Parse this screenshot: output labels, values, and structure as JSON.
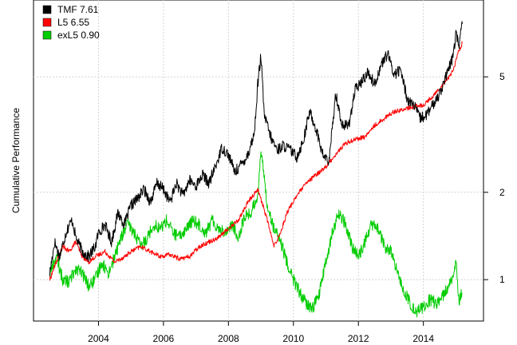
{
  "chart_data": {
    "type": "line",
    "title": "",
    "xlabel": "",
    "ylabel": "Cumulative Performance",
    "y_scale": "log",
    "xlim": [
      2002.0,
      2015.85
    ],
    "ylim": [
      0.72,
      9.2
    ],
    "x_ticks": [
      2004,
      2006,
      2008,
      2010,
      2012,
      2014
    ],
    "x_tick_labels": [
      "2004",
      "2006",
      "2008",
      "2010",
      "2012",
      "2014"
    ],
    "y_ticks": [
      1,
      2,
      5
    ],
    "y_tick_labels": [
      "1",
      "2",
      "5"
    ],
    "grid": true,
    "legend_position": "top-left",
    "series": [
      {
        "name": "TMF 7.61",
        "color": "#000000",
        "x": [
          2002.5,
          2002.65,
          2002.8,
          2003.0,
          2003.1,
          2003.2,
          2003.3,
          2003.5,
          2003.7,
          2003.9,
          2004.0,
          2004.2,
          2004.4,
          2004.6,
          2004.8,
          2005.0,
          2005.2,
          2005.4,
          2005.6,
          2005.8,
          2006.0,
          2006.2,
          2006.4,
          2006.6,
          2006.8,
          2007.0,
          2007.2,
          2007.4,
          2007.6,
          2007.8,
          2008.0,
          2008.2,
          2008.4,
          2008.6,
          2008.8,
          2008.9,
          2009.0,
          2009.1,
          2009.3,
          2009.5,
          2009.7,
          2009.9,
          2010.1,
          2010.3,
          2010.5,
          2010.7,
          2010.9,
          2011.1,
          2011.3,
          2011.5,
          2011.7,
          2011.9,
          2012.1,
          2012.3,
          2012.5,
          2012.7,
          2012.9,
          2013.1,
          2013.3,
          2013.5,
          2013.7,
          2013.9,
          2014.1,
          2014.3,
          2014.5,
          2014.7,
          2014.9,
          2015.0,
          2015.1,
          2015.2
        ],
        "values": [
          1.05,
          1.35,
          1.2,
          1.45,
          1.55,
          1.6,
          1.4,
          1.25,
          1.2,
          1.3,
          1.45,
          1.55,
          1.35,
          1.7,
          1.55,
          1.8,
          1.9,
          2.05,
          1.85,
          2.15,
          2.05,
          1.85,
          2.15,
          1.95,
          2.2,
          2.1,
          2.3,
          2.15,
          2.45,
          2.85,
          2.7,
          2.35,
          2.5,
          2.7,
          3.2,
          4.7,
          5.9,
          3.7,
          3.1,
          2.8,
          2.9,
          2.8,
          2.65,
          3.0,
          3.8,
          3.3,
          2.7,
          2.55,
          4.4,
          3.4,
          3.4,
          4.5,
          4.8,
          5.2,
          4.7,
          5.5,
          6.0,
          5.1,
          5.3,
          4.2,
          4.0,
          3.6,
          3.7,
          4.0,
          4.4,
          5.0,
          5.8,
          7.0,
          6.5,
          7.61
        ]
      },
      {
        "name": "L5 6.55",
        "color": "#ff0000",
        "x": [
          2002.5,
          2002.7,
          2002.9,
          2003.1,
          2003.3,
          2003.5,
          2003.7,
          2003.9,
          2004.2,
          2004.5,
          2004.8,
          2005.0,
          2005.3,
          2005.6,
          2005.9,
          2006.2,
          2006.5,
          2006.8,
          2007.1,
          2007.4,
          2007.7,
          2008.0,
          2008.3,
          2008.6,
          2008.9,
          2009.0,
          2009.2,
          2009.4,
          2009.6,
          2009.8,
          2010.1,
          2010.4,
          2010.7,
          2011.0,
          2011.3,
          2011.6,
          2011.9,
          2012.2,
          2012.5,
          2012.8,
          2013.1,
          2013.4,
          2013.7,
          2014.0,
          2014.3,
          2014.6,
          2014.9,
          2015.1,
          2015.2
        ],
        "values": [
          1.0,
          1.15,
          1.3,
          1.25,
          1.35,
          1.2,
          1.15,
          1.2,
          1.25,
          1.15,
          1.2,
          1.25,
          1.3,
          1.25,
          1.2,
          1.22,
          1.18,
          1.2,
          1.3,
          1.35,
          1.4,
          1.5,
          1.6,
          1.85,
          2.05,
          1.9,
          1.6,
          1.3,
          1.45,
          1.7,
          1.95,
          2.15,
          2.3,
          2.45,
          2.7,
          2.95,
          3.05,
          3.1,
          3.4,
          3.6,
          3.8,
          3.85,
          3.95,
          4.0,
          4.3,
          4.7,
          5.2,
          6.2,
          6.55
        ]
      },
      {
        "name": "exL5 0.90",
        "color": "#00cc00",
        "x": [
          2002.5,
          2002.7,
          2002.9,
          2003.1,
          2003.3,
          2003.5,
          2003.7,
          2003.9,
          2004.1,
          2004.3,
          2004.5,
          2004.7,
          2004.9,
          2005.1,
          2005.3,
          2005.5,
          2005.7,
          2005.9,
          2006.1,
          2006.3,
          2006.5,
          2006.7,
          2006.9,
          2007.1,
          2007.3,
          2007.5,
          2007.7,
          2007.9,
          2008.1,
          2008.3,
          2008.5,
          2008.7,
          2008.9,
          2009.0,
          2009.2,
          2009.4,
          2009.6,
          2009.8,
          2010.0,
          2010.2,
          2010.4,
          2010.6,
          2010.8,
          2011.0,
          2011.2,
          2011.4,
          2011.6,
          2011.8,
          2012.0,
          2012.2,
          2012.4,
          2012.6,
          2012.8,
          2013.0,
          2013.2,
          2013.4,
          2013.6,
          2013.8,
          2014.0,
          2014.2,
          2014.4,
          2014.6,
          2014.8,
          2015.0,
          2015.1,
          2015.2
        ],
        "values": [
          1.05,
          1.2,
          1.0,
          0.98,
          1.1,
          1.05,
          0.95,
          1.0,
          1.15,
          1.05,
          1.2,
          1.4,
          1.55,
          1.45,
          1.3,
          1.4,
          1.55,
          1.5,
          1.6,
          1.45,
          1.4,
          1.5,
          1.6,
          1.55,
          1.45,
          1.6,
          1.5,
          1.45,
          1.55,
          1.4,
          1.65,
          1.7,
          1.95,
          2.8,
          1.8,
          1.5,
          1.35,
          1.15,
          1.0,
          0.9,
          0.82,
          0.8,
          0.9,
          1.15,
          1.45,
          1.7,
          1.55,
          1.3,
          1.2,
          1.35,
          1.55,
          1.5,
          1.3,
          1.25,
          1.05,
          0.92,
          0.82,
          0.78,
          0.8,
          0.85,
          0.83,
          0.88,
          0.95,
          1.15,
          0.85,
          0.9
        ]
      }
    ]
  }
}
